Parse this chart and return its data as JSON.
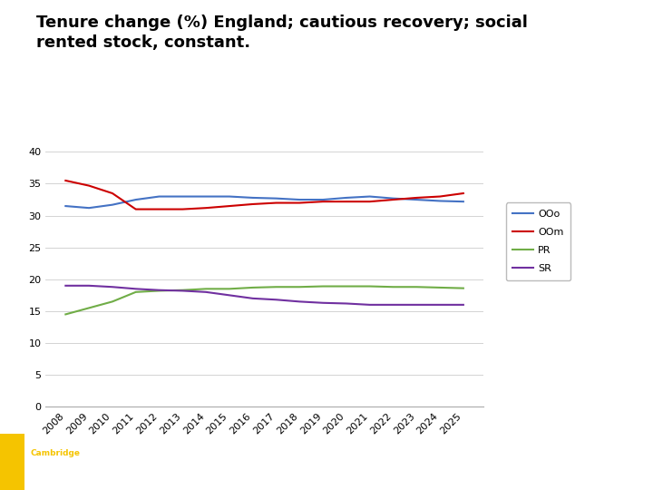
{
  "title": "Tenure change (%) England; cautious recovery; social\nrented stock, constant.",
  "years": [
    2008,
    2009,
    2010,
    2011,
    2012,
    2013,
    2014,
    2015,
    2016,
    2017,
    2018,
    2019,
    2020,
    2021,
    2022,
    2023,
    2024,
    2025
  ],
  "OOo": [
    31.5,
    31.2,
    31.7,
    32.5,
    33.0,
    33.0,
    33.0,
    33.0,
    32.8,
    32.7,
    32.5,
    32.5,
    32.8,
    33.0,
    32.7,
    32.5,
    32.3,
    32.2
  ],
  "OOm": [
    35.5,
    34.7,
    33.5,
    31.0,
    31.0,
    31.0,
    31.2,
    31.5,
    31.8,
    32.0,
    32.0,
    32.2,
    32.2,
    32.2,
    32.5,
    32.8,
    33.0,
    33.5
  ],
  "PR": [
    14.5,
    15.5,
    16.5,
    18.0,
    18.2,
    18.3,
    18.5,
    18.5,
    18.7,
    18.8,
    18.8,
    18.9,
    18.9,
    18.9,
    18.8,
    18.8,
    18.7,
    18.6
  ],
  "SR": [
    19.0,
    19.0,
    18.8,
    18.5,
    18.3,
    18.2,
    18.0,
    17.5,
    17.0,
    16.8,
    16.5,
    16.3,
    16.2,
    16.0,
    16.0,
    16.0,
    16.0,
    16.0
  ],
  "OOo_color": "#4472C4",
  "OOm_color": "#CC0000",
  "PR_color": "#70AD47",
  "SR_color": "#7030A0",
  "ylim": [
    0,
    40
  ],
  "yticks": [
    0,
    5,
    10,
    15,
    20,
    25,
    30,
    35,
    40
  ],
  "chart_bg": "#FFFFFF",
  "plot_bg": "#FFFFFF",
  "footer_bg": "#6D6D6D",
  "footer_yellow": "#F5C400",
  "title_fontsize": 13,
  "axis_fontsize": 8,
  "legend_fontsize": 8,
  "linewidth": 1.5
}
